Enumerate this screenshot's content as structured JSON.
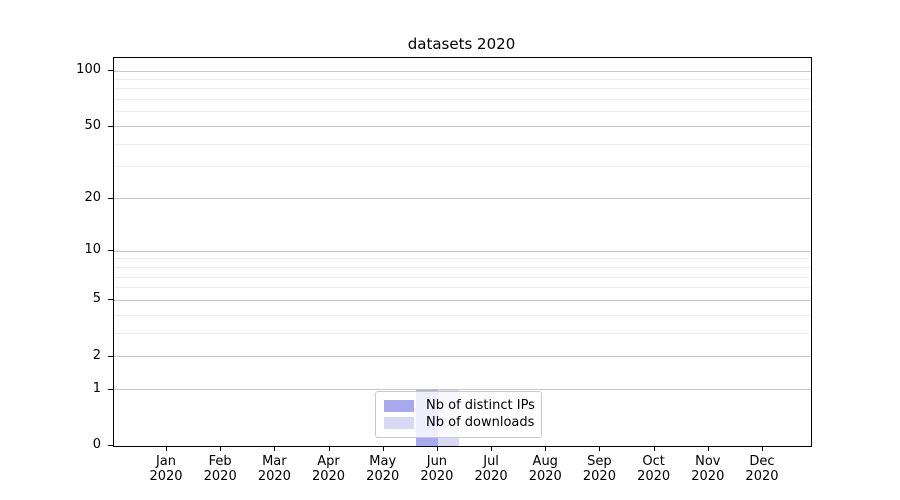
{
  "chart_data": {
    "type": "bar",
    "title": "datasets 2020",
    "categories": [
      "Jan 2020",
      "Feb 2020",
      "Mar 2020",
      "Apr 2020",
      "May 2020",
      "Jun 2020",
      "Jul 2020",
      "Aug 2020",
      "Sep 2020",
      "Oct 2020",
      "Nov 2020",
      "Dec 2020"
    ],
    "x_tick_month_labels": [
      "Jan",
      "Feb",
      "Mar",
      "Apr",
      "May",
      "Jun",
      "Jul",
      "Aug",
      "Sep",
      "Oct",
      "Nov",
      "Dec"
    ],
    "x_tick_year_label": "2020",
    "series": [
      {
        "name": "Nb of distinct IPs",
        "color": "#a8a8ee",
        "values": [
          0,
          0,
          0,
          0,
          0,
          1,
          0,
          0,
          0,
          0,
          0,
          0
        ]
      },
      {
        "name": "Nb of downloads",
        "color": "#d9d9f5",
        "values": [
          0,
          0,
          0,
          0,
          0,
          1,
          0,
          0,
          0,
          0,
          0,
          0
        ]
      }
    ],
    "y_scale": "log1p",
    "y_major_ticks": [
      0,
      1,
      2,
      5,
      10,
      20,
      50,
      100
    ],
    "y_minor_ticks": [
      3,
      4,
      6,
      7,
      8,
      9,
      30,
      40,
      60,
      70,
      80,
      90
    ],
    "ylim": [
      0,
      117
    ],
    "grid": "both",
    "legend_position": "lower center",
    "colors": {
      "grid_major": "#c8c8c8",
      "grid_minor": "#ededed",
      "spine": "#000000",
      "text": "#000000"
    }
  }
}
